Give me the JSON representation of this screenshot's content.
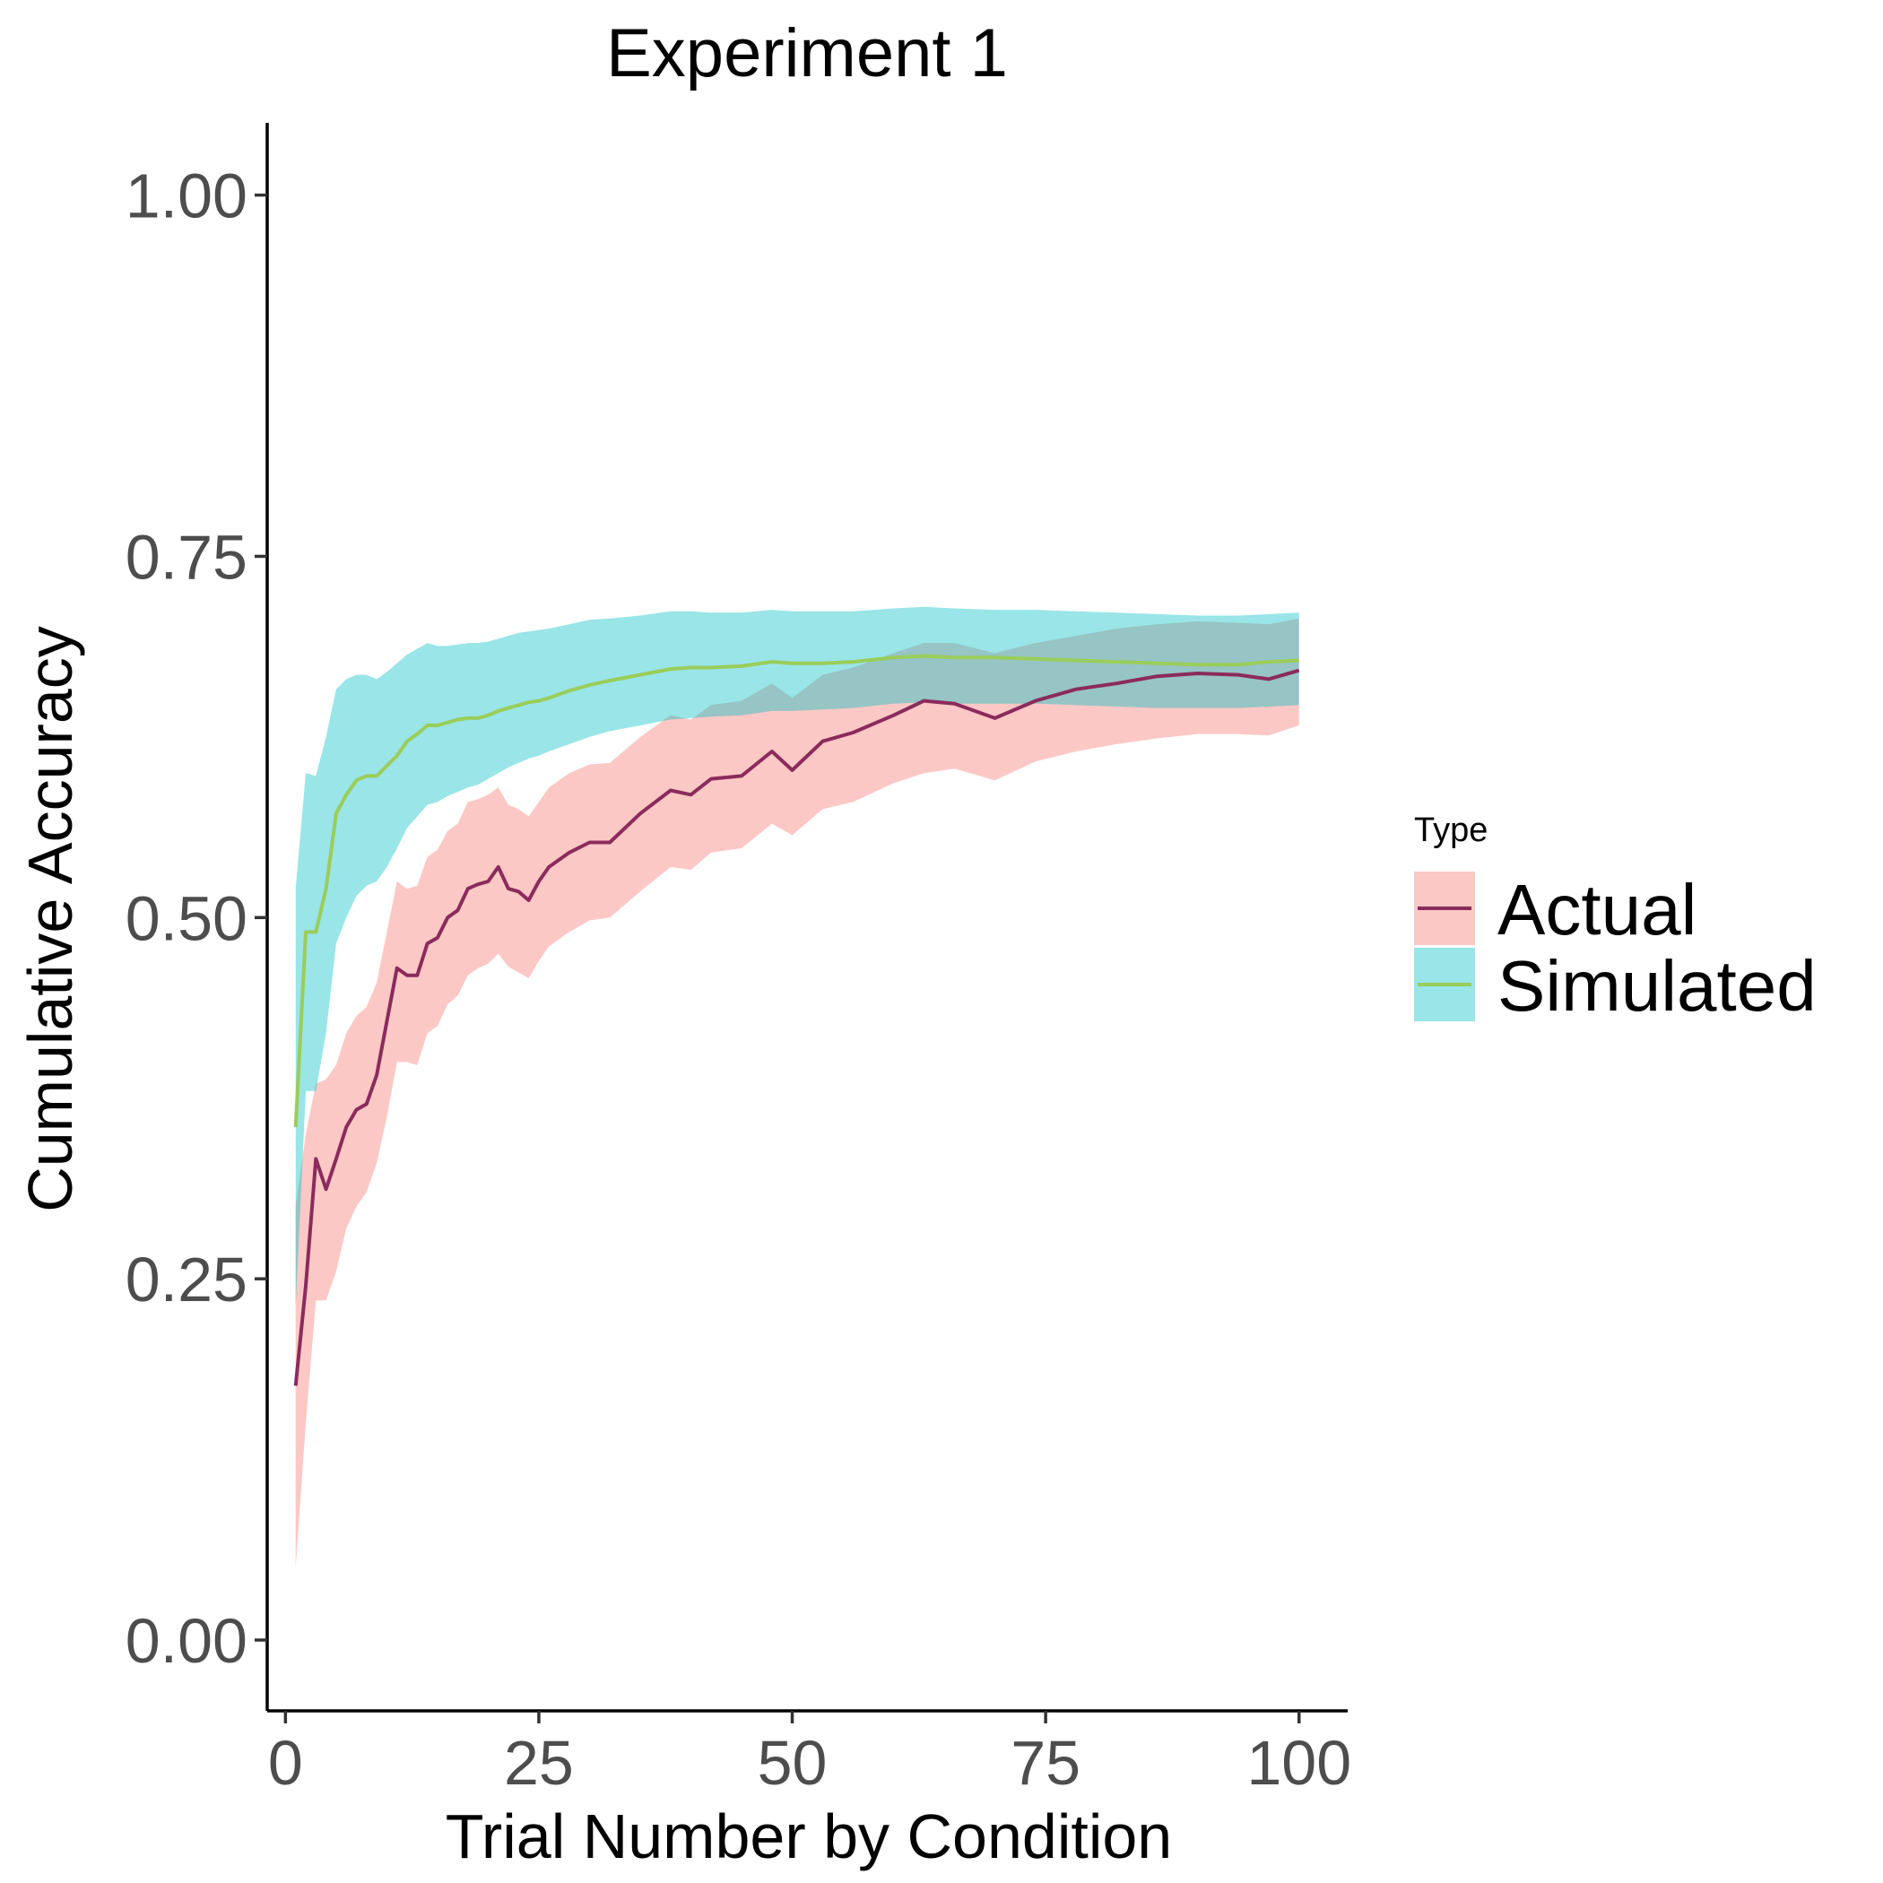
{
  "chart_data": {
    "type": "line",
    "title": "Experiment 1",
    "xlabel": "Trial Number by Condition",
    "ylabel": "Cumulative Accuracy",
    "xlim": [
      -1.8,
      104.8
    ],
    "ylim": [
      -0.049,
      1.05
    ],
    "x_ticks": [
      0,
      25,
      50,
      75,
      100
    ],
    "x_tick_labels": [
      "0",
      "25",
      "50",
      "75",
      "100"
    ],
    "y_ticks": [
      0,
      0.25,
      0.5,
      0.75,
      1.0
    ],
    "y_tick_labels": [
      "0.00",
      "0.25",
      "0.50",
      "0.75",
      "1.00"
    ],
    "grid": false,
    "legend": {
      "title": "Type",
      "position": "right",
      "entries": [
        "Actual",
        "Simulated"
      ]
    },
    "series": [
      {
        "name": "Actual",
        "line_color": "#8b2b5c",
        "band_color": "#f8766d",
        "x": [
          1,
          2,
          3,
          4,
          5,
          6,
          7,
          8,
          9,
          10,
          11,
          12,
          13,
          14,
          15,
          16,
          17,
          18,
          19,
          20,
          21,
          22,
          23,
          24,
          25,
          26,
          28,
          30,
          32,
          35,
          38,
          40,
          42,
          45,
          48,
          50,
          53,
          56,
          60,
          63,
          66,
          70,
          74,
          78,
          82,
          86,
          90,
          94,
          97,
          100
        ],
        "y": [
          0.176,
          0.245,
          0.333,
          0.312,
          0.333,
          0.355,
          0.367,
          0.371,
          0.391,
          0.428,
          0.465,
          0.46,
          0.46,
          0.482,
          0.486,
          0.5,
          0.505,
          0.52,
          0.523,
          0.525,
          0.535,
          0.52,
          0.518,
          0.512,
          0.525,
          0.535,
          0.545,
          0.552,
          0.552,
          0.572,
          0.588,
          0.585,
          0.596,
          0.598,
          0.615,
          0.602,
          0.622,
          0.628,
          0.64,
          0.65,
          0.648,
          0.638,
          0.65,
          0.658,
          0.662,
          0.667,
          0.669,
          0.668,
          0.665,
          0.671
        ],
        "lower": [
          0.05,
          0.15,
          0.235,
          0.235,
          0.255,
          0.285,
          0.3,
          0.31,
          0.33,
          0.362,
          0.4,
          0.4,
          0.398,
          0.42,
          0.425,
          0.44,
          0.446,
          0.46,
          0.465,
          0.468,
          0.475,
          0.466,
          0.462,
          0.458,
          0.47,
          0.48,
          0.49,
          0.498,
          0.5,
          0.518,
          0.535,
          0.533,
          0.545,
          0.548,
          0.565,
          0.557,
          0.575,
          0.58,
          0.593,
          0.6,
          0.603,
          0.595,
          0.608,
          0.615,
          0.62,
          0.624,
          0.627,
          0.627,
          0.626,
          0.633
        ],
        "upper": [
          0.3,
          0.35,
          0.385,
          0.388,
          0.398,
          0.42,
          0.432,
          0.438,
          0.455,
          0.49,
          0.525,
          0.52,
          0.522,
          0.542,
          0.547,
          0.56,
          0.565,
          0.58,
          0.582,
          0.585,
          0.59,
          0.578,
          0.575,
          0.57,
          0.58,
          0.59,
          0.6,
          0.606,
          0.607,
          0.625,
          0.64,
          0.637,
          0.647,
          0.65,
          0.662,
          0.652,
          0.668,
          0.673,
          0.683,
          0.69,
          0.69,
          0.683,
          0.69,
          0.695,
          0.7,
          0.703,
          0.705,
          0.704,
          0.703,
          0.707
        ]
      },
      {
        "name": "Simulated",
        "line_color": "#9acd5a",
        "band_color": "#00bfc4",
        "x": [
          1,
          2,
          3,
          4,
          5,
          6,
          7,
          8,
          9,
          10,
          11,
          12,
          13,
          14,
          15,
          16,
          17,
          18,
          19,
          20,
          21,
          22,
          23,
          24,
          25,
          26,
          28,
          30,
          32,
          35,
          38,
          40,
          42,
          45,
          48,
          50,
          53,
          56,
          60,
          63,
          66,
          70,
          74,
          78,
          82,
          86,
          90,
          94,
          97,
          100
        ],
        "y": [
          0.355,
          0.49,
          0.49,
          0.52,
          0.572,
          0.585,
          0.595,
          0.598,
          0.598,
          0.605,
          0.612,
          0.622,
          0.627,
          0.633,
          0.633,
          0.635,
          0.637,
          0.638,
          0.638,
          0.64,
          0.643,
          0.645,
          0.647,
          0.649,
          0.65,
          0.652,
          0.657,
          0.661,
          0.664,
          0.668,
          0.672,
          0.673,
          0.673,
          0.674,
          0.677,
          0.676,
          0.676,
          0.677,
          0.68,
          0.681,
          0.68,
          0.68,
          0.679,
          0.678,
          0.677,
          0.676,
          0.675,
          0.675,
          0.677,
          0.678
        ],
        "lower": [
          0.23,
          0.38,
          0.38,
          0.42,
          0.482,
          0.5,
          0.515,
          0.522,
          0.525,
          0.535,
          0.548,
          0.562,
          0.57,
          0.578,
          0.58,
          0.584,
          0.587,
          0.59,
          0.592,
          0.596,
          0.6,
          0.604,
          0.607,
          0.61,
          0.612,
          0.615,
          0.62,
          0.625,
          0.629,
          0.633,
          0.637,
          0.638,
          0.639,
          0.64,
          0.643,
          0.643,
          0.644,
          0.645,
          0.648,
          0.649,
          0.648,
          0.648,
          0.648,
          0.647,
          0.646,
          0.645,
          0.645,
          0.645,
          0.646,
          0.647
        ],
        "upper": [
          0.52,
          0.6,
          0.598,
          0.625,
          0.658,
          0.665,
          0.668,
          0.668,
          0.665,
          0.67,
          0.676,
          0.682,
          0.686,
          0.69,
          0.688,
          0.688,
          0.689,
          0.69,
          0.69,
          0.691,
          0.693,
          0.695,
          0.697,
          0.698,
          0.699,
          0.7,
          0.703,
          0.706,
          0.707,
          0.709,
          0.712,
          0.712,
          0.711,
          0.711,
          0.713,
          0.712,
          0.712,
          0.712,
          0.714,
          0.715,
          0.714,
          0.713,
          0.713,
          0.712,
          0.711,
          0.71,
          0.709,
          0.709,
          0.71,
          0.711
        ]
      }
    ]
  }
}
